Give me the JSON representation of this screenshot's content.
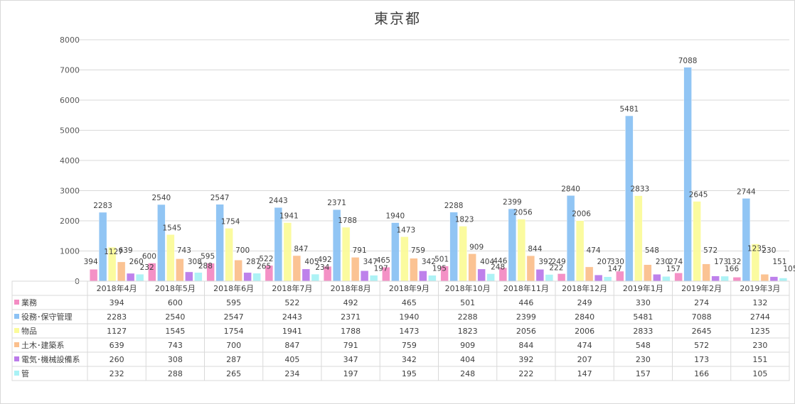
{
  "chart_data": {
    "type": "bar",
    "title": "東京都",
    "ylim": [
      0,
      8000
    ],
    "yticks": [
      0,
      1000,
      2000,
      3000,
      4000,
      5000,
      6000,
      7000,
      8000
    ],
    "grid": true,
    "legend": "data-table-left",
    "categories": [
      "2018年4月",
      "2018年5月",
      "2018年6月",
      "2018年7月",
      "2018年8月",
      "2018年9月",
      "2018年10月",
      "2018年11月",
      "2018年12月",
      "2019年1月",
      "2019年2月",
      "2019年3月"
    ],
    "series": [
      {
        "name": "業務",
        "color": "#f48cc3",
        "values": [
          394,
          600,
          595,
          522,
          492,
          465,
          501,
          446,
          249,
          330,
          274,
          132
        ]
      },
      {
        "name": "役務･保守管理",
        "color": "#8cc2f4",
        "values": [
          2283,
          2540,
          2547,
          2443,
          2371,
          1940,
          2288,
          2399,
          2840,
          5481,
          7088,
          2744
        ]
      },
      {
        "name": "物品",
        "color": "#fbfb9a",
        "values": [
          1127,
          1545,
          1754,
          1941,
          1788,
          1473,
          1823,
          2056,
          2006,
          2833,
          2645,
          1235
        ]
      },
      {
        "name": "土木･建築系",
        "color": "#fbc08e",
        "values": [
          639,
          743,
          700,
          847,
          791,
          759,
          909,
          844,
          474,
          548,
          572,
          230
        ]
      },
      {
        "name": "電気･機械設備系",
        "color": "#bb7bea",
        "values": [
          260,
          308,
          287,
          405,
          347,
          342,
          404,
          392,
          207,
          230,
          173,
          151
        ]
      },
      {
        "name": "管",
        "color": "#a9f2f5",
        "values": [
          232,
          288,
          265,
          234,
          197,
          195,
          248,
          222,
          147,
          157,
          166,
          105
        ]
      }
    ]
  }
}
